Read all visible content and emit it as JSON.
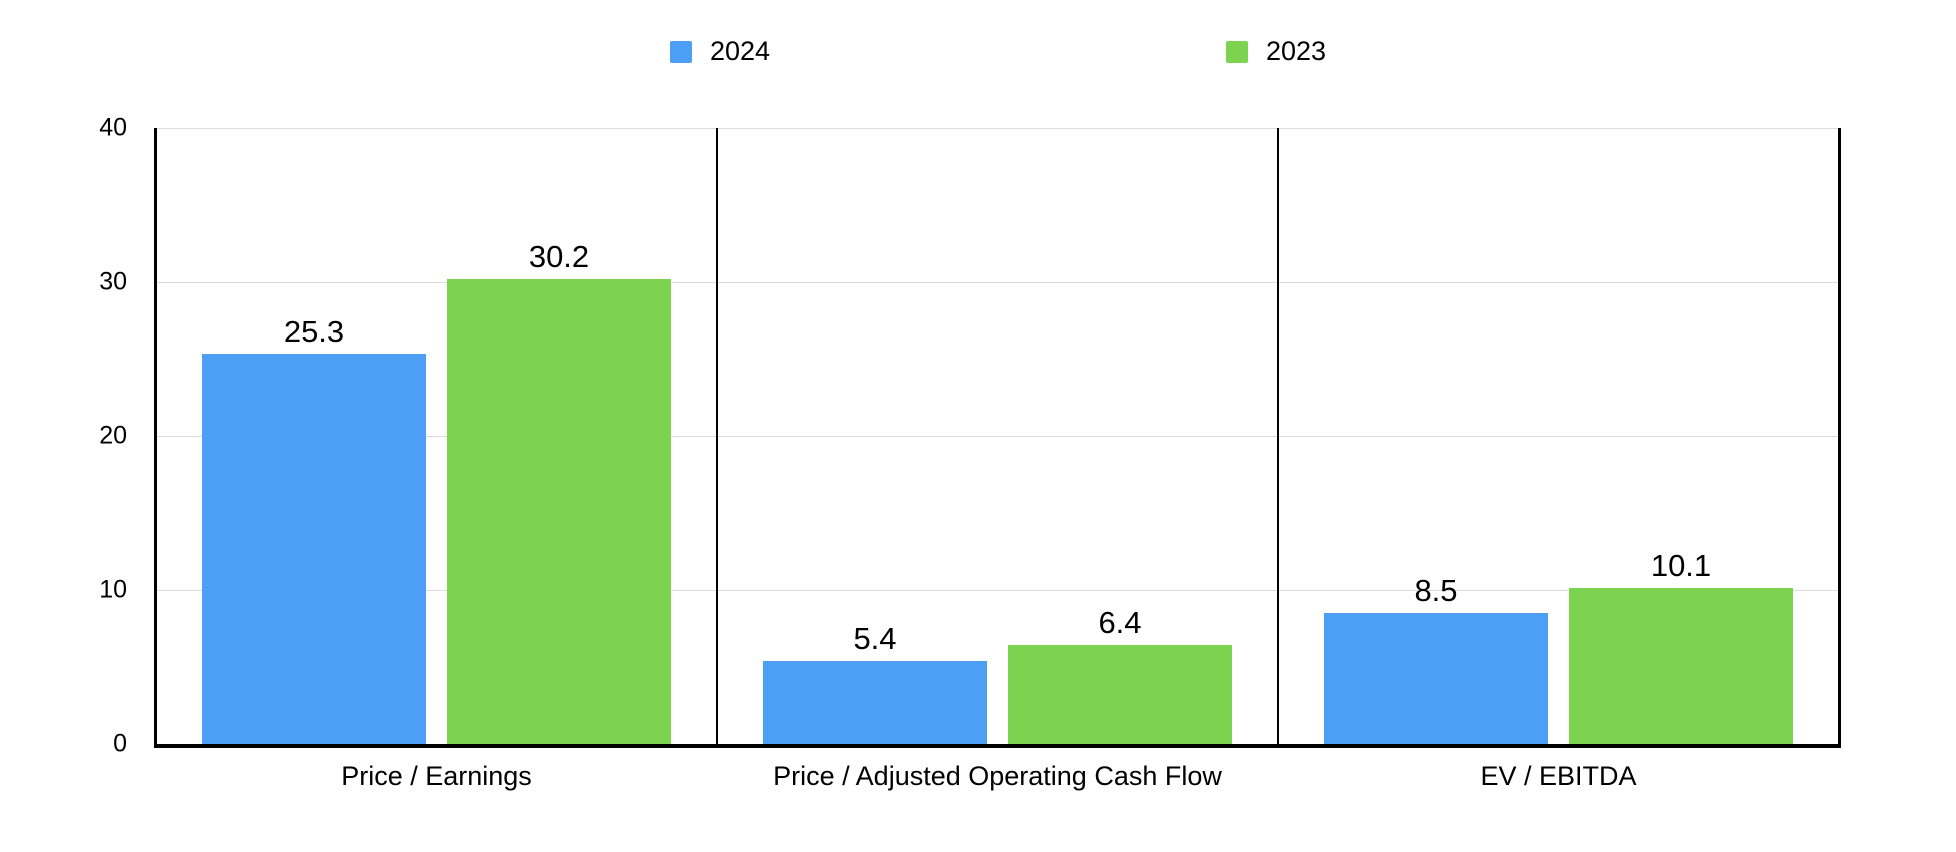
{
  "chart_data": {
    "type": "bar",
    "title": "",
    "categories": [
      "Price / Earnings",
      "Price / Adjusted Operating Cash Flow",
      "EV / EBITDA"
    ],
    "series": [
      {
        "name": "2024",
        "color": "#4D9EF5",
        "values": [
          25.3,
          5.4,
          8.5
        ],
        "labels": [
          "25.3",
          "5.4",
          "8.5"
        ]
      },
      {
        "name": "2023",
        "color": "#7CD350",
        "values": [
          30.2,
          6.4,
          10.1
        ],
        "labels": [
          "30.2",
          "6.4",
          "10.1"
        ]
      }
    ],
    "ylim": [
      0,
      40
    ],
    "yticks": [
      0,
      10,
      20,
      30,
      40
    ],
    "ytick_labels": [
      "0",
      "10",
      "20",
      "30",
      "40"
    ],
    "grid": "horizontal",
    "legend_position": "top",
    "panel_dividers": true
  },
  "colors": {
    "background": "#ffffff",
    "axis": "#000000",
    "gridline": "#dcdcdc",
    "text": "#000000",
    "series_2024": "#4D9EF5",
    "series_2023": "#7CD350"
  }
}
